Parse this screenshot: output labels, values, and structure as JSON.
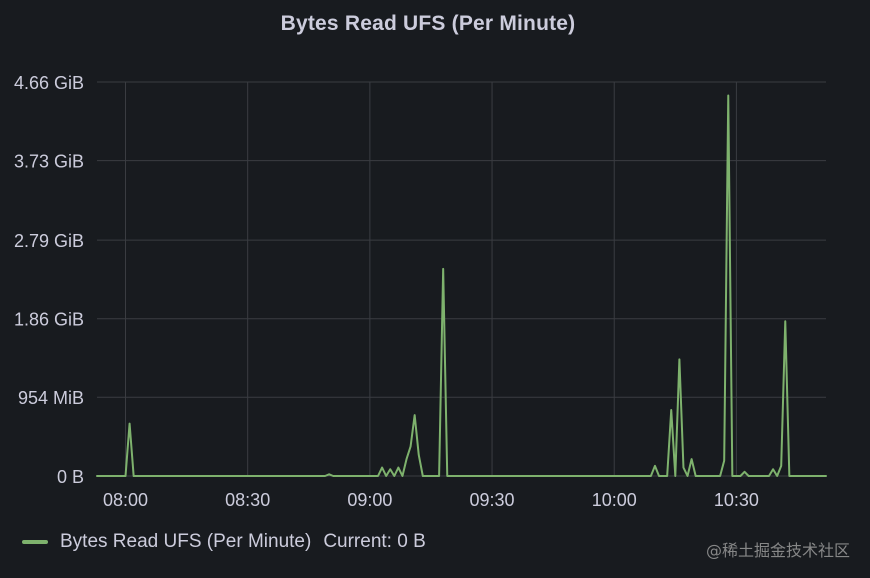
{
  "panel": {
    "title": "Bytes Read UFS (Per Minute)"
  },
  "legend": {
    "series_name": "Bytes Read UFS (Per Minute)",
    "current_label": "Current: 0 B",
    "color": "#7eb26d"
  },
  "watermark": "@稀土掘金技术社区",
  "colors": {
    "background": "#181b1f",
    "grid": "#3a3d42",
    "text": "#ccccdc",
    "series": "#7eb26d"
  },
  "chart_data": {
    "type": "line",
    "title": "Bytes Read UFS (Per Minute)",
    "xlabel": "",
    "ylabel": "",
    "grid": true,
    "legend_placement": "bottom-left",
    "y_unit": "GiB",
    "ylim": [
      0,
      4.66
    ],
    "y_ticks": [
      {
        "value": 0,
        "label": "0 B"
      },
      {
        "value": 0.932,
        "label": "954 MiB"
      },
      {
        "value": 1.86,
        "label": "1.86 GiB"
      },
      {
        "value": 2.79,
        "label": "2.79 GiB"
      },
      {
        "value": 3.73,
        "label": "3.73 GiB"
      },
      {
        "value": 4.66,
        "label": "4.66 GiB"
      }
    ],
    "x_unit": "time",
    "xlim": [
      "07:53",
      "10:52"
    ],
    "x_ticks": [
      "08:00",
      "08:30",
      "09:00",
      "09:30",
      "10:00",
      "10:30"
    ],
    "series": [
      {
        "name": "Bytes Read UFS (Per Minute)",
        "color": "#7eb26d",
        "points": [
          [
            "07:53",
            0
          ],
          [
            "08:00",
            0
          ],
          [
            "08:01",
            0.62
          ],
          [
            "08:02",
            0
          ],
          [
            "08:49",
            0
          ],
          [
            "08:50",
            0.02
          ],
          [
            "08:51",
            0
          ],
          [
            "09:02",
            0
          ],
          [
            "09:03",
            0.1
          ],
          [
            "09:04",
            0
          ],
          [
            "09:05",
            0.08
          ],
          [
            "09:06",
            0
          ],
          [
            "09:07",
            0.1
          ],
          [
            "09:08",
            0
          ],
          [
            "09:09",
            0.2
          ],
          [
            "09:10",
            0.35
          ],
          [
            "09:11",
            0.72
          ],
          [
            "09:12",
            0.25
          ],
          [
            "09:13",
            0
          ],
          [
            "09:17",
            0
          ],
          [
            "09:18",
            2.45
          ],
          [
            "09:19",
            0
          ],
          [
            "09:20",
            0
          ],
          [
            "10:09",
            0
          ],
          [
            "10:10",
            0.12
          ],
          [
            "10:11",
            0
          ],
          [
            "10:13",
            0
          ],
          [
            "10:14",
            0.78
          ],
          [
            "10:15",
            0
          ],
          [
            "10:16",
            1.38
          ],
          [
            "10:17",
            0.1
          ],
          [
            "10:18",
            0
          ],
          [
            "10:19",
            0.2
          ],
          [
            "10:20",
            0
          ],
          [
            "10:26",
            0
          ],
          [
            "10:27",
            0.18
          ],
          [
            "10:28",
            4.5
          ],
          [
            "10:29",
            0
          ],
          [
            "10:31",
            0
          ],
          [
            "10:32",
            0.05
          ],
          [
            "10:33",
            0
          ],
          [
            "10:38",
            0
          ],
          [
            "10:39",
            0.08
          ],
          [
            "10:40",
            0
          ],
          [
            "10:41",
            0.12
          ],
          [
            "10:42",
            1.83
          ],
          [
            "10:43",
            0
          ],
          [
            "10:52",
            0
          ]
        ]
      }
    ],
    "current": "0 B"
  }
}
